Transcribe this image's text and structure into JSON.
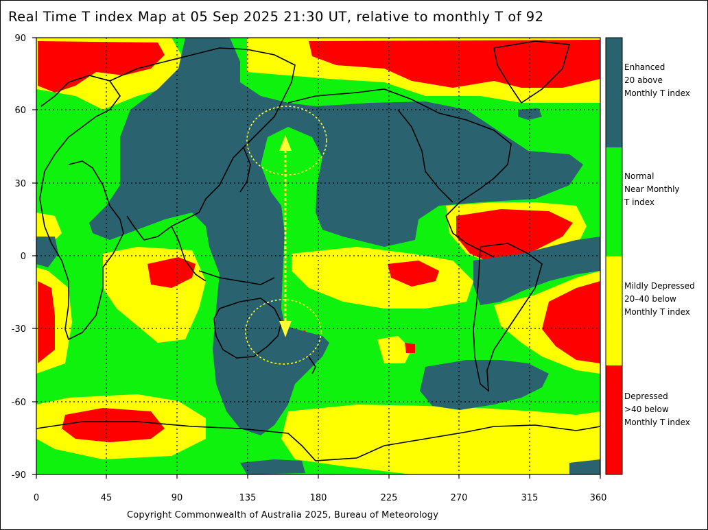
{
  "title": "Real Time T index Map at 05 Sep 2025 21:30 UT, relative to monthly T of 92",
  "copyright": "Copyright Commonwealth of Australia 2025, Bureau of Meteorology",
  "axes": {
    "x_ticks": [
      "0",
      "45",
      "90",
      "135",
      "180",
      "225",
      "270",
      "315",
      "360"
    ],
    "y_ticks": [
      "90",
      "60",
      "30",
      "0",
      "-30",
      "-60",
      "-90"
    ],
    "x_range": [
      0,
      360
    ],
    "y_range": [
      -90,
      90
    ]
  },
  "colors": {
    "enhanced": "#2a6270",
    "normal": "#0ef20e",
    "mildly_depressed": "#ffff00",
    "depressed": "#ff0000",
    "annotation": "#ffff33"
  },
  "legend": [
    {
      "key": "enhanced",
      "lines": [
        "Enhanced",
        "20 above",
        "Monthly T index"
      ]
    },
    {
      "key": "normal",
      "lines": [
        "Normal",
        "Near Monthly",
        "T index"
      ]
    },
    {
      "key": "mildly_depressed",
      "lines": [
        "Mildly Depressed",
        "20–40 below",
        "Monthly T index"
      ]
    },
    {
      "key": "depressed",
      "lines": [
        "Depressed",
        ">40 below",
        "Monthly T index"
      ]
    }
  ],
  "annotations": {
    "north_circle_center": [
      162,
      51
    ],
    "south_circle_center": [
      155,
      -35
    ],
    "arrow_lon": 157,
    "arrow_lat_range": [
      48,
      -32
    ]
  }
}
